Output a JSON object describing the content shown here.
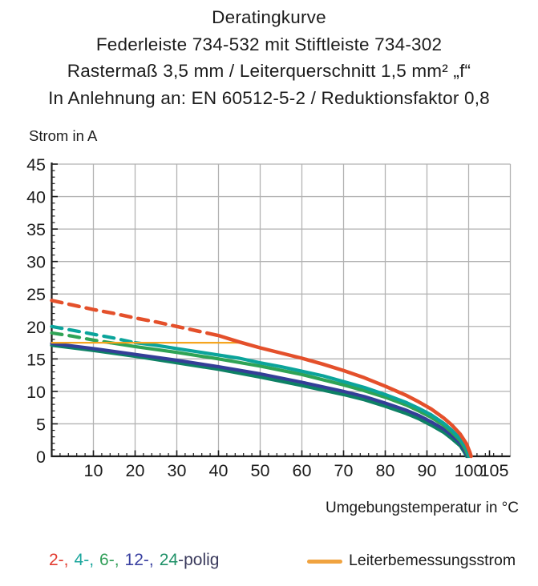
{
  "title_lines": [
    "Deratingkurve",
    "Federleiste 734-532 mit Stiftleiste 734-302",
    "Rastermaß 3,5 mm / Leiterquerschnitt 1,5 mm² „f“",
    "In Anlehnung an: EN 60512-5-2 / Reduktionsfaktor 0,8"
  ],
  "chart_data": {
    "type": "line",
    "title": "Deratingkurve",
    "ylabel": "Strom in A",
    "xlabel": "Umgebungstemperatur in °C",
    "xlim": [
      0,
      110
    ],
    "ylim": [
      0,
      45
    ],
    "x_major_ticks": [
      10,
      20,
      30,
      40,
      50,
      60,
      70,
      80,
      90,
      100,
      105
    ],
    "x_gridlines": [
      10,
      20,
      30,
      40,
      50,
      60,
      70,
      80,
      90,
      100
    ],
    "x_minor_step": 2,
    "y_major_ticks": [
      0,
      5,
      10,
      15,
      20,
      25,
      30,
      35,
      40,
      45
    ],
    "y_minor_step": 1,
    "grid": true,
    "rated_current_a": 17.5,
    "series": [
      {
        "name": "24-polig",
        "color": "#0e8165",
        "width": 4.2,
        "dashed": false,
        "points": [
          [
            0,
            17.1
          ],
          [
            10,
            16.3
          ],
          [
            20,
            15.4
          ],
          [
            30,
            14.4
          ],
          [
            40,
            13.4
          ],
          [
            50,
            12.2
          ],
          [
            60,
            10.9
          ],
          [
            70,
            9.5
          ],
          [
            75,
            8.7
          ],
          [
            80,
            7.7
          ],
          [
            85,
            6.6
          ],
          [
            88,
            5.8
          ],
          [
            91,
            4.8
          ],
          [
            94,
            3.7
          ],
          [
            96,
            2.7
          ],
          [
            98,
            1.6
          ],
          [
            99,
            0.6
          ],
          [
            99.5,
            0
          ]
        ]
      },
      {
        "name": "12-polig",
        "color": "#343e98",
        "width": 4.2,
        "dashed": false,
        "points": [
          [
            0,
            17.4
          ],
          [
            10,
            16.6
          ],
          [
            20,
            15.7
          ],
          [
            30,
            14.8
          ],
          [
            40,
            13.8
          ],
          [
            50,
            12.7
          ],
          [
            60,
            11.4
          ],
          [
            70,
            10.0
          ],
          [
            75,
            9.2
          ],
          [
            80,
            8.2
          ],
          [
            85,
            7.1
          ],
          [
            88,
            6.3
          ],
          [
            91,
            5.3
          ],
          [
            94,
            4.2
          ],
          [
            96,
            3.2
          ],
          [
            98,
            2.0
          ],
          [
            99,
            0.9
          ],
          [
            99.7,
            0
          ]
        ]
      },
      {
        "name": "6-polig",
        "color": "#2fa355",
        "width": 4.2,
        "dashed": false,
        "points": [
          [
            14,
            17.5
          ],
          [
            20,
            16.9
          ],
          [
            30,
            16.0
          ],
          [
            40,
            15.0
          ],
          [
            50,
            13.9
          ],
          [
            60,
            12.6
          ],
          [
            70,
            11.0
          ],
          [
            75,
            10.1
          ],
          [
            80,
            9.1
          ],
          [
            85,
            7.9
          ],
          [
            88,
            7.0
          ],
          [
            91,
            6.0
          ],
          [
            94,
            4.8
          ],
          [
            96,
            3.7
          ],
          [
            98,
            2.4
          ],
          [
            99.2,
            1.1
          ],
          [
            99.9,
            0
          ]
        ]
      },
      {
        "name": "4-polig",
        "color": "#0ba49b",
        "width": 4.2,
        "dashed": false,
        "points": [
          [
            20,
            17.5
          ],
          [
            25,
            17.1
          ],
          [
            30,
            16.6
          ],
          [
            35,
            16.1
          ],
          [
            40,
            15.6
          ],
          [
            45,
            15.1
          ],
          [
            50,
            14.4
          ],
          [
            55,
            13.8
          ],
          [
            60,
            13.1
          ],
          [
            65,
            12.4
          ],
          [
            70,
            11.5
          ],
          [
            75,
            10.6
          ],
          [
            80,
            9.5
          ],
          [
            85,
            8.3
          ],
          [
            88,
            7.4
          ],
          [
            91,
            6.4
          ],
          [
            94,
            5.1
          ],
          [
            96,
            4.0
          ],
          [
            98,
            2.7
          ],
          [
            99.4,
            1.3
          ],
          [
            100.1,
            0
          ]
        ]
      },
      {
        "name": "6-polig (gestrichelt)",
        "color": "#2fa355",
        "width": 4.2,
        "dashed": true,
        "points": [
          [
            0,
            19.0
          ],
          [
            5,
            18.5
          ],
          [
            10,
            17.9
          ],
          [
            14,
            17.5
          ]
        ]
      },
      {
        "name": "4-polig (gestrichelt)",
        "color": "#0ba49b",
        "width": 4.2,
        "dashed": true,
        "points": [
          [
            0,
            20.0
          ],
          [
            5,
            19.4
          ],
          [
            10,
            18.8
          ],
          [
            15,
            18.2
          ],
          [
            20,
            17.5
          ]
        ]
      },
      {
        "name": "Leiterbemessungsstrom",
        "color": "#f5a51f",
        "width": 2.2,
        "dashed": false,
        "points": [
          [
            0,
            17.5
          ],
          [
            45,
            17.5
          ]
        ]
      },
      {
        "name": "2-polig (gestrichelt)",
        "color": "#e4502b",
        "width": 4.5,
        "dashed": true,
        "points": [
          [
            0,
            24.0
          ],
          [
            5,
            23.3
          ],
          [
            10,
            22.6
          ],
          [
            15,
            22.0
          ],
          [
            20,
            21.3
          ],
          [
            25,
            20.7
          ],
          [
            30,
            20.0
          ],
          [
            35,
            19.3
          ],
          [
            40,
            18.6
          ]
        ]
      },
      {
        "name": "2-polig",
        "color": "#e4502b",
        "width": 4.5,
        "dashed": false,
        "points": [
          [
            40,
            18.6
          ],
          [
            45,
            17.6
          ],
          [
            50,
            16.7
          ],
          [
            55,
            15.9
          ],
          [
            60,
            15.1
          ],
          [
            65,
            14.2
          ],
          [
            70,
            13.2
          ],
          [
            75,
            12.1
          ],
          [
            80,
            10.8
          ],
          [
            85,
            9.4
          ],
          [
            88,
            8.4
          ],
          [
            91,
            7.3
          ],
          [
            94,
            5.9
          ],
          [
            96,
            4.8
          ],
          [
            98,
            3.4
          ],
          [
            99.5,
            1.9
          ],
          [
            100.3,
            0.6
          ],
          [
            100.6,
            0
          ]
        ]
      }
    ]
  },
  "legend": {
    "pole_segments": [
      {
        "label": "2-,",
        "color": "#e23b30"
      },
      {
        "label": "4-,",
        "color": "#1ba69d"
      },
      {
        "label": "6-,",
        "color": "#2f9e57"
      },
      {
        "label": "12-,",
        "color": "#3a41a1"
      },
      {
        "label": "24",
        "color": "#1f9168"
      }
    ],
    "suffix": {
      "label": "-polig",
      "color": "#3a3a5c"
    },
    "rated": {
      "label": "Leiterbemessungsstrom",
      "color": "#f0a340"
    }
  },
  "colors": {
    "grid": "#b2b2b2",
    "axis": "#1c1c1c",
    "text": "#1c1c1c",
    "background": "#ffffff"
  }
}
